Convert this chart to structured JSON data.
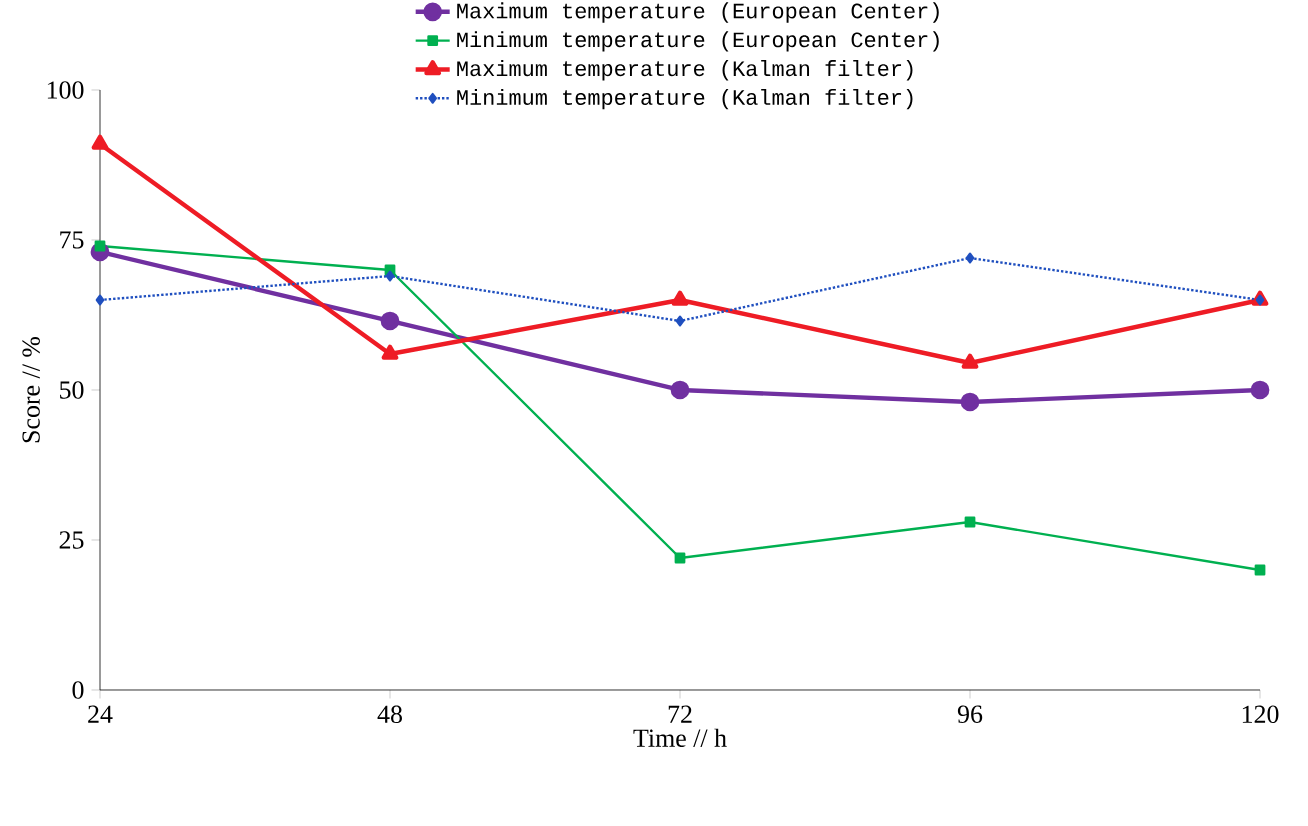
{
  "chart_data": {
    "type": "line",
    "xlabel": "Time // h",
    "ylabel": "Score // %",
    "x": [
      24,
      48,
      72,
      96,
      120
    ],
    "xlim": [
      24,
      120
    ],
    "xticks": [
      24,
      48,
      72,
      96,
      120
    ],
    "ylim": [
      0,
      100
    ],
    "yticks": [
      0,
      25,
      50,
      75,
      100
    ],
    "grid": false,
    "legend": "top",
    "series": [
      {
        "name": "Maximum temperature (European Center)",
        "color": "#7030a0",
        "marker": "circle",
        "line_style": "solid",
        "values": [
          73,
          61.5,
          50,
          48,
          50
        ]
      },
      {
        "name": "Minimum temperature (European Center)",
        "color": "#00b050",
        "marker": "square",
        "line_style": "solid",
        "values": [
          74,
          70,
          22,
          28,
          20
        ]
      },
      {
        "name": "Maximum temperature (Kalman filter)",
        "color": "#ee1c25",
        "marker": "triangle",
        "line_style": "solid",
        "values": [
          91,
          56,
          65,
          54.5,
          65
        ]
      },
      {
        "name": "Minimum temperature (Kalman filter)",
        "color": "#1f4fbf",
        "marker": "diamond",
        "line_style": "dotted",
        "values": [
          65,
          69,
          61.5,
          72,
          65
        ]
      }
    ]
  }
}
